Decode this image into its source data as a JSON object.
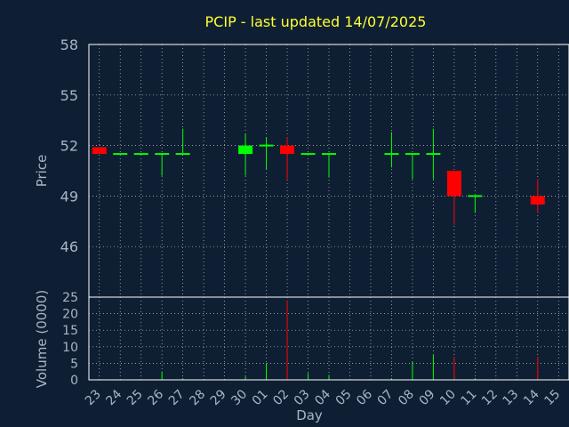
{
  "chart_data": {
    "type": "candlestick",
    "title": "PCIP - last updated 14/07/2025",
    "ylabel": "Price",
    "volume_label": "Volume (0000)",
    "xlabel": "Day",
    "price_ylim": [
      43,
      58
    ],
    "price_ticks": [
      "58",
      "55",
      "52",
      "49",
      "46"
    ],
    "volume_ylim": [
      0,
      25
    ],
    "volume_ticks": [
      "25",
      "20",
      "15",
      "10",
      "5",
      "0"
    ],
    "x_ticks": [
      "23",
      "24",
      "25",
      "26",
      "27",
      "28",
      "29",
      "30",
      "01",
      "02",
      "03",
      "04",
      "05",
      "06",
      "07",
      "08",
      "09",
      "10",
      "11",
      "12",
      "13",
      "14",
      "15"
    ],
    "grid": true,
    "colors": {
      "up": "#00ff00",
      "down": "#ff0000",
      "background": "#0f1f33",
      "title": "#ffff33",
      "axis_text": "#a9b4c8",
      "grid": "#c8c8c8"
    },
    "candles": [
      {
        "day": "23",
        "open": 51.9,
        "high": 51.9,
        "low": 51.5,
        "close": 51.5,
        "volume": 0
      },
      {
        "day": "24",
        "open": 51.5,
        "high": 51.5,
        "low": 51.5,
        "close": 51.5,
        "volume": 0
      },
      {
        "day": "25",
        "open": 51.5,
        "high": 51.5,
        "low": 51.5,
        "close": 51.5,
        "volume": 0
      },
      {
        "day": "26",
        "open": 51.5,
        "high": 51.5,
        "low": 50.2,
        "close": 51.5,
        "volume": 2.5
      },
      {
        "day": "27",
        "open": 51.5,
        "high": 53.0,
        "low": 51.5,
        "close": 51.5,
        "volume": 0.5
      },
      {
        "day": "30",
        "open": 51.5,
        "high": 52.7,
        "low": 50.2,
        "close": 52.0,
        "volume": 1.0
      },
      {
        "day": "01",
        "open": 52.0,
        "high": 52.5,
        "low": 50.6,
        "close": 52.0,
        "volume": 5.0
      },
      {
        "day": "02",
        "open": 52.0,
        "high": 52.5,
        "low": 50.0,
        "close": 51.5,
        "volume": 24.0
      },
      {
        "day": "03",
        "open": 51.5,
        "high": 51.5,
        "low": 51.5,
        "close": 51.5,
        "volume": 2.0
      },
      {
        "day": "04",
        "open": 51.5,
        "high": 51.5,
        "low": 50.1,
        "close": 51.5,
        "volume": 1.5
      },
      {
        "day": "07",
        "open": 51.5,
        "high": 52.8,
        "low": 50.7,
        "close": 51.5,
        "volume": 0.5
      },
      {
        "day": "08",
        "open": 51.5,
        "high": 51.5,
        "low": 50.0,
        "close": 51.5,
        "volume": 5.5
      },
      {
        "day": "09",
        "open": 51.5,
        "high": 53.0,
        "low": 50.0,
        "close": 51.5,
        "volume": 7.5
      },
      {
        "day": "10",
        "open": 50.5,
        "high": 50.5,
        "low": 47.3,
        "close": 49.0,
        "volume": 7.0
      },
      {
        "day": "11",
        "open": 49.0,
        "high": 49.0,
        "low": 48.0,
        "close": 49.0,
        "volume": 0.5
      },
      {
        "day": "14",
        "open": 49.0,
        "high": 50.0,
        "low": 48.0,
        "close": 48.5,
        "volume": 7.0
      }
    ]
  }
}
